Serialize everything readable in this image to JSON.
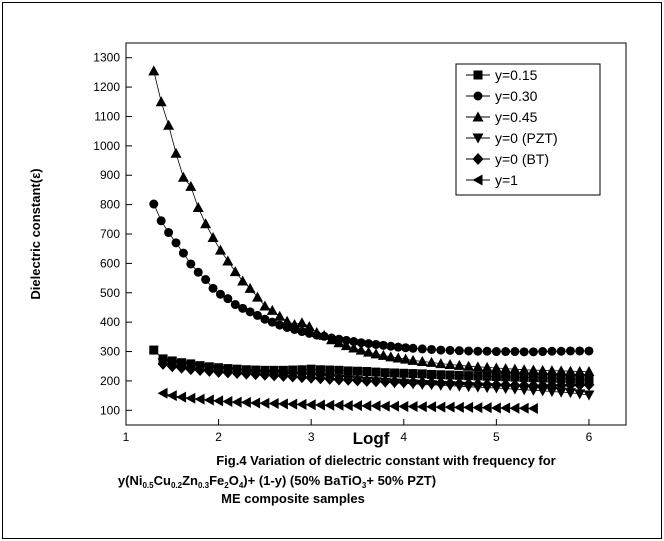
{
  "chart_data": {
    "type": "scatter",
    "xlabel": "Logf",
    "ylabel": "Dielectric constant(ε)",
    "xlim": [
      1,
      6.4
    ],
    "ylim": [
      50,
      1350
    ],
    "xticks": [
      1,
      2,
      3,
      4,
      5,
      6
    ],
    "yticks": [
      100,
      200,
      300,
      400,
      500,
      600,
      700,
      800,
      900,
      1000,
      1100,
      1200,
      1300
    ],
    "grid": false,
    "legend_position": "top-right",
    "caption": {
      "line1": "Fig.4 Variation of dielectric constant with frequency for",
      "line2": {
        "p1": "y(Ni",
        "s1": "0.5",
        "p2": "Cu",
        "s2": "0.2",
        "p3": "Zn",
        "s3": "0.3",
        "p4": "Fe",
        "s4": "2",
        "p5": "O",
        "s5": "4",
        "p6": ")+ (1-y) (50% BaTiO",
        "s6": "3",
        "p7": "+ 50% PZT)"
      },
      "line3": "ME composite samples"
    },
    "series": [
      {
        "name": "y=0.15",
        "marker": "square",
        "x": [
          1.3,
          1.4,
          1.5,
          1.6,
          1.7,
          1.8,
          1.9,
          2.0,
          2.1,
          2.2,
          2.3,
          2.4,
          2.5,
          2.6,
          2.7,
          2.8,
          2.9,
          3.0,
          3.1,
          3.2,
          3.3,
          3.4,
          3.5,
          3.6,
          3.7,
          3.8,
          3.9,
          4.0,
          4.1,
          4.2,
          4.3,
          4.4,
          4.5,
          4.6,
          4.7,
          4.8,
          4.9,
          5.0,
          5.1,
          5.2,
          5.3,
          5.4,
          5.5,
          5.6,
          5.7,
          5.8,
          5.9,
          6.0
        ],
        "y": [
          305,
          275,
          268,
          262,
          258,
          252,
          248,
          245,
          242,
          240,
          238,
          237,
          236,
          236,
          236,
          237,
          238,
          240,
          238,
          237,
          236,
          234,
          233,
          232,
          230,
          228,
          227,
          226,
          225,
          224,
          222,
          221,
          220,
          219,
          218,
          217,
          216,
          215,
          214,
          213,
          212,
          211,
          210,
          209,
          208,
          207,
          205,
          203
        ]
      },
      {
        "name": "y=0.30",
        "marker": "circle",
        "x": [
          1.3,
          1.38,
          1.46,
          1.54,
          1.62,
          1.7,
          1.78,
          1.86,
          1.94,
          2.02,
          2.1,
          2.18,
          2.26,
          2.34,
          2.42,
          2.5,
          2.58,
          2.66,
          2.74,
          2.82,
          2.9,
          2.98,
          3.06,
          3.14,
          3.22,
          3.3,
          3.38,
          3.46,
          3.54,
          3.62,
          3.7,
          3.78,
          3.86,
          3.94,
          4.02,
          4.1,
          4.2,
          4.3,
          4.4,
          4.5,
          4.6,
          4.7,
          4.8,
          4.9,
          5.0,
          5.1,
          5.2,
          5.3,
          5.4,
          5.5,
          5.6,
          5.7,
          5.8,
          5.9,
          6.0
        ],
        "y": [
          802,
          745,
          705,
          670,
          635,
          598,
          570,
          545,
          515,
          495,
          480,
          460,
          447,
          435,
          423,
          410,
          400,
          390,
          382,
          375,
          368,
          362,
          356,
          352,
          346,
          342,
          338,
          334,
          330,
          327,
          324,
          321,
          318,
          315,
          313,
          311,
          309,
          307,
          305,
          304,
          303,
          302,
          301,
          301,
          300,
          300,
          300,
          299,
          299,
          300,
          301,
          301,
          302,
          302,
          302
        ]
      },
      {
        "name": "y=0.45",
        "marker": "triangle-up",
        "x": [
          1.3,
          1.38,
          1.46,
          1.54,
          1.62,
          1.7,
          1.78,
          1.86,
          1.94,
          2.02,
          2.1,
          2.18,
          2.26,
          2.34,
          2.42,
          2.5,
          2.58,
          2.66,
          2.74,
          2.82,
          2.9,
          2.98,
          3.06,
          3.14,
          3.22,
          3.3,
          3.38,
          3.46,
          3.54,
          3.62,
          3.7,
          3.78,
          3.86,
          3.94,
          4.02,
          4.1,
          4.2,
          4.3,
          4.4,
          4.5,
          4.6,
          4.7,
          4.8,
          4.9,
          5.0,
          5.1,
          5.2,
          5.3,
          5.4,
          5.5,
          5.6,
          5.7,
          5.8,
          5.9,
          6.0
        ],
        "y": [
          1255,
          1150,
          1070,
          975,
          893,
          862,
          790,
          735,
          688,
          645,
          608,
          572,
          540,
          515,
          485,
          455,
          440,
          420,
          403,
          392,
          398,
          385,
          365,
          355,
          340,
          330,
          320,
          312,
          305,
          298,
          292,
          287,
          282,
          278,
          274,
          270,
          266,
          263,
          259,
          256,
          253,
          250,
          248,
          246,
          244,
          242,
          240,
          238,
          237,
          236,
          235,
          234,
          233,
          232,
          232
        ]
      },
      {
        "name": "y=0 (PZT)",
        "marker": "triangle-down",
        "x": [
          1.4,
          1.5,
          1.6,
          1.7,
          1.8,
          1.9,
          2.0,
          2.1,
          2.2,
          2.3,
          2.4,
          2.5,
          2.6,
          2.7,
          2.8,
          2.9,
          3.0,
          3.1,
          3.2,
          3.3,
          3.4,
          3.5,
          3.6,
          3.7,
          3.8,
          3.9,
          4.0,
          4.1,
          4.2,
          4.3,
          4.4,
          4.5,
          4.6,
          4.7,
          4.8,
          4.9,
          5.0,
          5.1,
          5.2,
          5.3,
          5.4,
          5.5,
          5.6,
          5.7,
          5.8,
          5.9,
          6.0
        ],
        "y": [
          262,
          256,
          250,
          246,
          242,
          238,
          234,
          231,
          228,
          225,
          223,
          221,
          219,
          217,
          215,
          213,
          211,
          209,
          207,
          205,
          203,
          201,
          199,
          197,
          195,
          193,
          192,
          190,
          188,
          187,
          185,
          184,
          182,
          180,
          179,
          177,
          176,
          174,
          172,
          170,
          168,
          166,
          164,
          162,
          160,
          156,
          152
        ]
      },
      {
        "name": "y=0 (BT)",
        "marker": "diamond",
        "x": [
          1.4,
          1.5,
          1.6,
          1.7,
          1.8,
          1.9,
          2.0,
          2.1,
          2.2,
          2.3,
          2.4,
          2.5,
          2.6,
          2.7,
          2.8,
          2.9,
          3.0,
          3.1,
          3.2,
          3.3,
          3.4,
          3.5,
          3.6,
          3.7,
          3.8,
          3.9,
          4.0,
          4.1,
          4.2,
          4.3,
          4.4,
          4.5,
          4.6,
          4.7,
          4.8,
          4.9,
          5.0,
          5.1,
          5.2,
          5.3,
          5.4,
          5.5,
          5.6,
          5.7,
          5.8,
          5.9,
          6.0
        ],
        "y": [
          258,
          250,
          245,
          240,
          237,
          234,
          231,
          229,
          227,
          225,
          223,
          221,
          219,
          217,
          215,
          213,
          211,
          209,
          207,
          205,
          204,
          202,
          200,
          199,
          198,
          197,
          196,
          195,
          194,
          193,
          192,
          191,
          190,
          189,
          188,
          187,
          186,
          186,
          185,
          185,
          184,
          184,
          185,
          185,
          186,
          186,
          187
        ]
      },
      {
        "name": "y=1",
        "marker": "triangle-left",
        "x": [
          1.4,
          1.5,
          1.6,
          1.7,
          1.8,
          1.9,
          2.0,
          2.1,
          2.2,
          2.3,
          2.4,
          2.5,
          2.6,
          2.7,
          2.8,
          2.9,
          3.0,
          3.1,
          3.2,
          3.3,
          3.4,
          3.5,
          3.6,
          3.7,
          3.8,
          3.9,
          4.0,
          4.1,
          4.2,
          4.3,
          4.4,
          4.5,
          4.6,
          4.7,
          4.8,
          4.9,
          5.0,
          5.1,
          5.2,
          5.3,
          5.4
        ],
        "y": [
          158,
          150,
          145,
          141,
          138,
          135,
          132,
          130,
          128,
          127,
          125,
          124,
          123,
          122,
          121,
          120,
          119,
          118,
          117,
          117,
          116,
          116,
          115,
          115,
          114,
          114,
          113,
          113,
          112,
          112,
          111,
          111,
          110,
          110,
          109,
          109,
          108,
          108,
          107,
          107,
          106
        ]
      }
    ]
  }
}
